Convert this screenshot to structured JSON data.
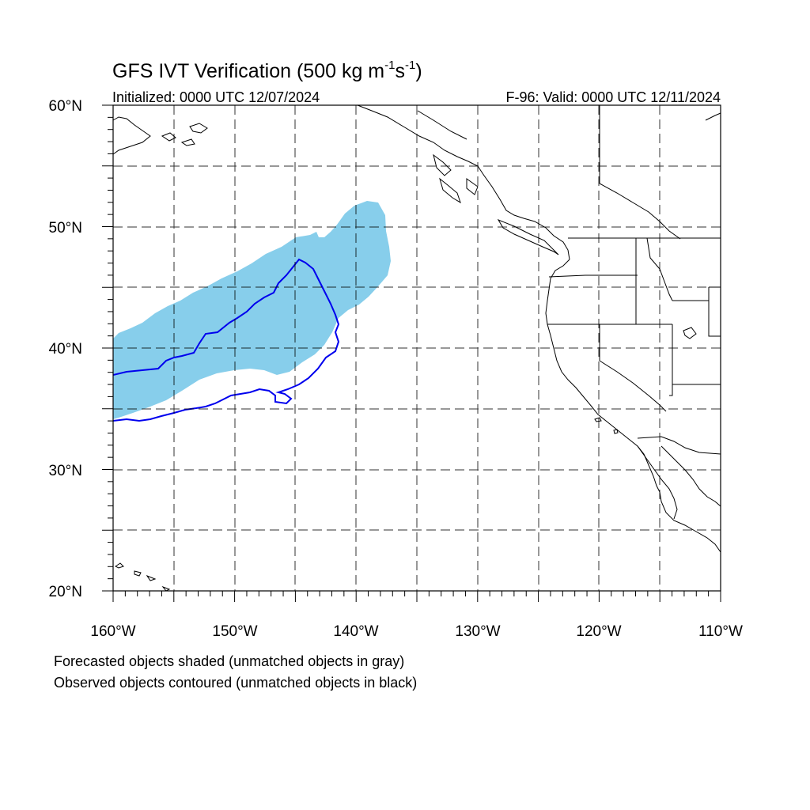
{
  "title": {
    "prefix": "GFS IVT Verification (500 kg m",
    "sup1": "-1",
    "mid": "s",
    "sup2": "-1",
    "suffix": ")"
  },
  "initialized": "Initialized: 0000 UTC 12/07/2024",
  "valid": "F-96: Valid: 0000 UTC 12/11/2024",
  "lat_labels": [
    "60°N",
    "50°N",
    "40°N",
    "30°N",
    "20°N"
  ],
  "lon_labels": [
    "160°W",
    "150°W",
    "140°W",
    "130°W",
    "120°W",
    "110°W"
  ],
  "footnotes": [
    "Forecasted objects shaded (unmatched objects in gray)",
    "Observed objects contoured (unmatched objects in black)"
  ],
  "colors": {
    "forecast_fill": "#87ceeb",
    "observed_contour": "#0000ee",
    "coastline": "#000000",
    "grid": "#000000"
  },
  "map": {
    "projection": "cylindrical-equidistant",
    "lon_range": [
      -160,
      -110
    ],
    "lat_range": [
      20,
      60
    ],
    "grid_spacing_deg": 5,
    "grid_style": "dashed"
  }
}
